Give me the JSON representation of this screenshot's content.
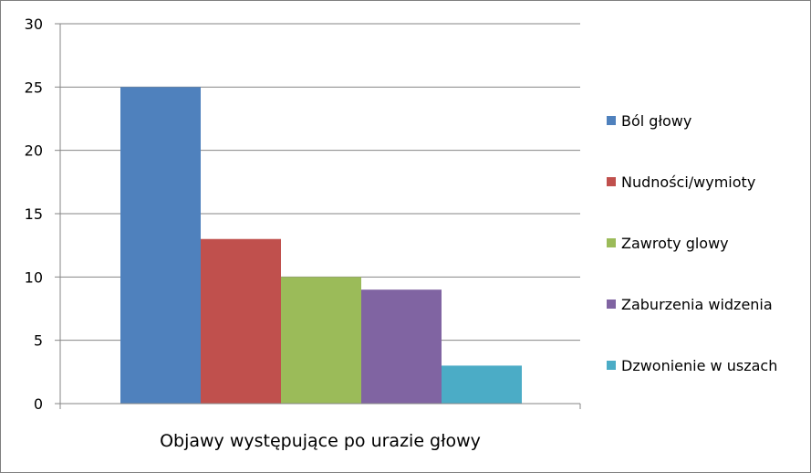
{
  "chart_data": {
    "type": "bar",
    "title": "",
    "xlabel": "Objawy występujące po urazie głowy",
    "ylabel": "",
    "ylim": [
      0,
      30
    ],
    "yticks": [
      0,
      5,
      10,
      15,
      20,
      25,
      30
    ],
    "grid": true,
    "legend_position": "right",
    "series": [
      {
        "name": "Ból głowy",
        "value": 25,
        "color": "#4f81bd"
      },
      {
        "name": "Nudności/wymioty",
        "value": 13,
        "color": "#c0504d"
      },
      {
        "name": "Zawroty glowy",
        "value": 10,
        "color": "#9bbb59"
      },
      {
        "name": "Zaburzenia widzenia",
        "value": 9,
        "color": "#8064a2"
      },
      {
        "name": "Dzwonienie w uszach",
        "value": 3,
        "color": "#4bacc6"
      }
    ]
  }
}
